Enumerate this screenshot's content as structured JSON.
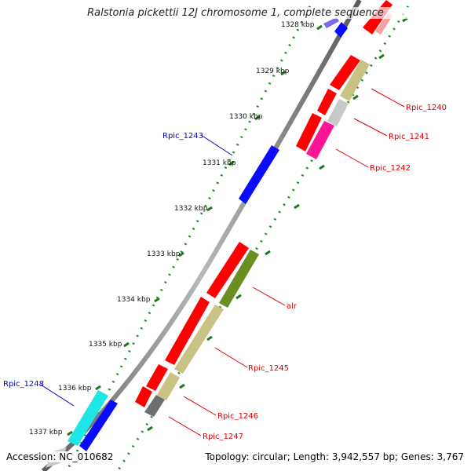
{
  "title": "Ralstonia pickettii 12J chromosome 1, complete sequence",
  "footer": {
    "accession": "Accession: NC_010682",
    "summary": "Topology: circular; Length: 3,942,557 bp; Genes: 3,767"
  },
  "ticks": [
    "1328 kbp",
    "1329 kbp",
    "1330 kbp",
    "1331 kbp",
    "1332 kbp",
    "1333 kbp",
    "1334 kbp",
    "1335 kbp",
    "1336 kbp",
    "1337 kbp"
  ],
  "gene_labels": {
    "rpic_1240": "Rpic_1240",
    "rpic_1241": "Rpic_1241",
    "rpic_1242": "Rpic_1242",
    "rpic_1243": "Rpic_1243",
    "alr": "alr",
    "rpic_1245": "Rpic_1245",
    "rpic_1246": "Rpic_1246",
    "rpic_1247": "Rpic_1247",
    "rpic_1248": "Rpic_1248"
  },
  "colors": {
    "backbone": "#8c8c8c",
    "tick_dot": "#1e8c1e",
    "tick_major": "#1a7a1a",
    "red": "#ff0000",
    "blue": "#0a0aff",
    "khaki": "#c8c284",
    "gray": "#c8c8c8",
    "dark_gray": "#6e6e6e",
    "magenta": "#ff1493",
    "olive": "#6b8e23",
    "cyan": "#1ee6e6",
    "pink": "#f6a0a0",
    "violet": "#7b68ee",
    "label_red": "#dd0000",
    "label_blue": "#0000cc"
  }
}
